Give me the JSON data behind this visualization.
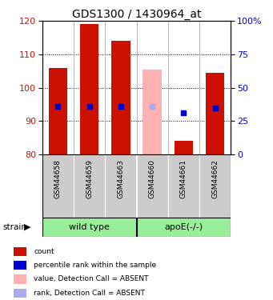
{
  "title": "GDS1300 / 1430964_at",
  "samples": [
    "GSM44658",
    "GSM44659",
    "GSM44663",
    "GSM44660",
    "GSM44661",
    "GSM44662"
  ],
  "groups": [
    "wild type",
    "wild type",
    "wild type",
    "apoE(-/-)",
    "apoE(-/-)",
    "apoE(-/-)"
  ],
  "group_labels": [
    "wild type",
    "apoE(-/-)"
  ],
  "group_starts": [
    0,
    3
  ],
  "group_ends": [
    3,
    6
  ],
  "ylim": [
    80,
    120
  ],
  "y2lim": [
    0,
    100
  ],
  "yticks": [
    80,
    90,
    100,
    110,
    120
  ],
  "y2ticks": [
    0,
    25,
    50,
    75,
    100
  ],
  "y2tick_labels": [
    "0",
    "25",
    "50",
    "75",
    "100%"
  ],
  "bar_bottoms": [
    80,
    80,
    80,
    80,
    80,
    80
  ],
  "bar_tops": [
    106,
    119,
    114,
    105.5,
    84,
    104.5
  ],
  "bar_absent": [
    false,
    false,
    false,
    true,
    false,
    false
  ],
  "rank_values": [
    94.5,
    94.5,
    94.5,
    94.5,
    92.5,
    94
  ],
  "rank_absent": [
    false,
    false,
    false,
    true,
    false,
    false
  ],
  "bar_color_present": "#cc1100",
  "bar_color_absent": "#ffb0b0",
  "rank_color_present": "#0000cc",
  "rank_color_absent": "#aaaaee",
  "bar_width": 0.6,
  "rank_marker_size": 4,
  "left_label_color": "#cc1100",
  "right_label_color": "#0000cc",
  "group_bg_color": "#99ee99",
  "sample_bg_color": "#cccccc",
  "strain_label": "strain",
  "legend": [
    {
      "color": "#cc1100",
      "label": "count"
    },
    {
      "color": "#0000cc",
      "label": "percentile rank within the sample"
    },
    {
      "color": "#ffb0b0",
      "label": "value, Detection Call = ABSENT"
    },
    {
      "color": "#aaaaee",
      "label": "rank, Detection Call = ABSENT"
    }
  ]
}
